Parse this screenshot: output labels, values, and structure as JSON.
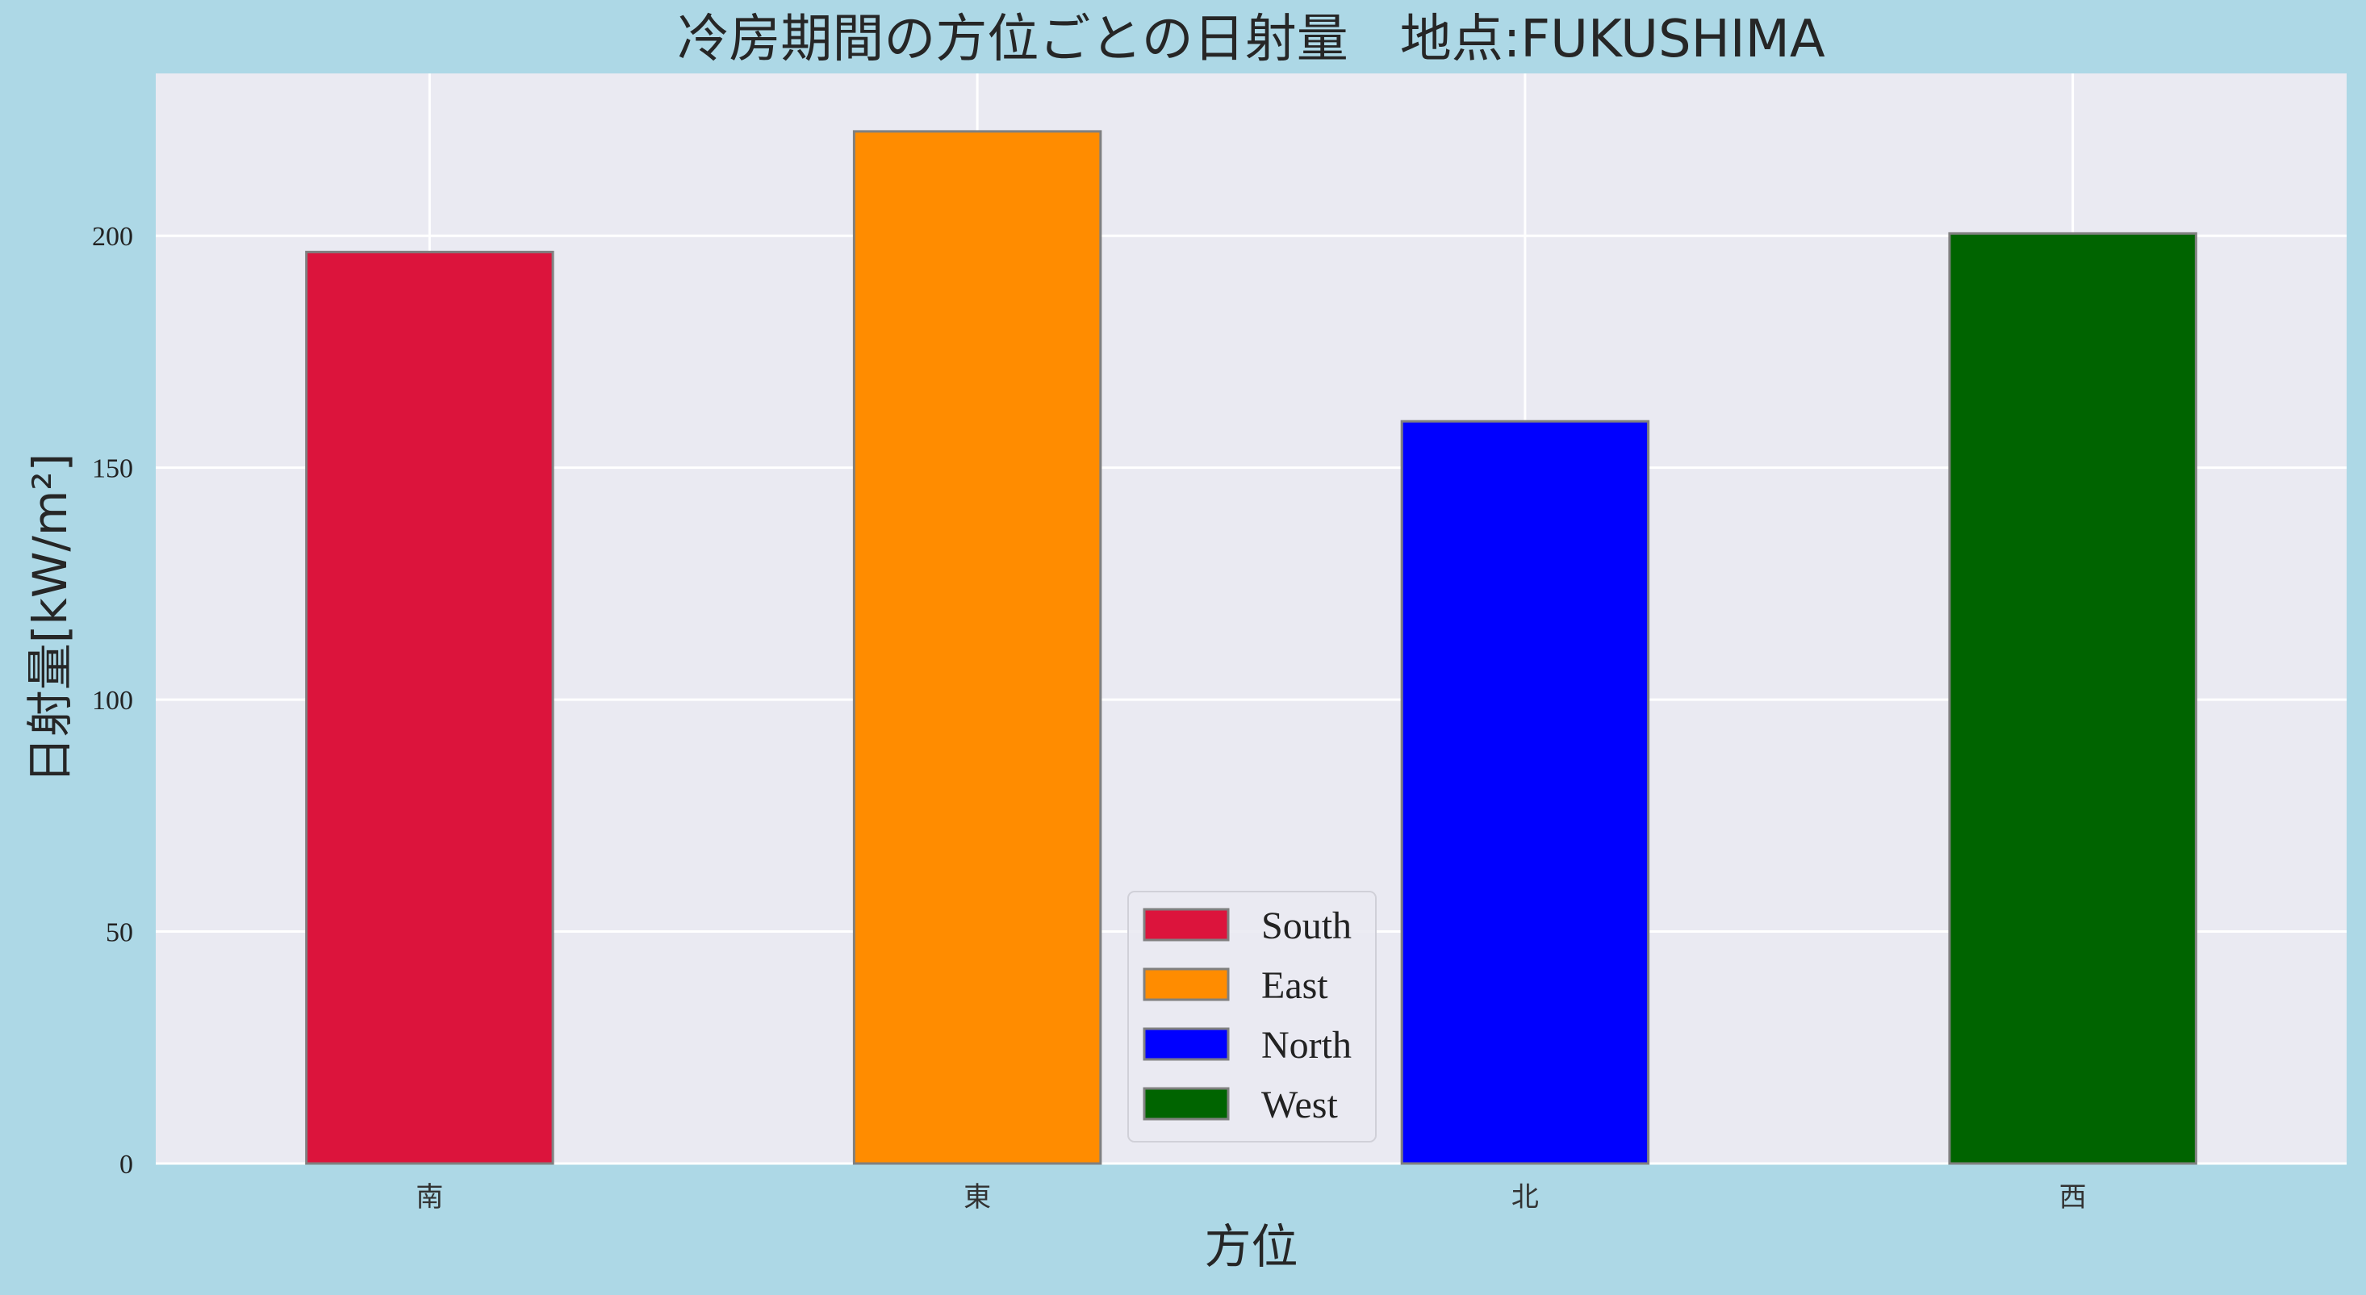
{
  "chart_data": {
    "type": "bar",
    "title": "冷房期間の方位ごとの日射量　地点:FUKUSHIMA",
    "xlabel": "方位",
    "ylabel": "日射量[kW/m²]",
    "categories": [
      "南",
      "東",
      "北",
      "西"
    ],
    "values": [
      196.5,
      222.5,
      160.0,
      200.5
    ],
    "colors": [
      "#dc143c",
      "#ff8c00",
      "#0000ff",
      "#006400"
    ],
    "legend": [
      "South",
      "East",
      "North",
      "West"
    ],
    "legend_position": "lower center",
    "ylim": [
      0,
      235
    ],
    "yticks": [
      0,
      50,
      100,
      150,
      200
    ],
    "grid": true,
    "background": "#add8e6",
    "plot_background": "#eaeaf2"
  }
}
